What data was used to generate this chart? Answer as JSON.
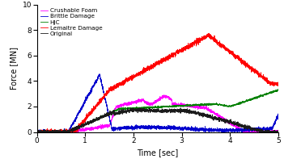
{
  "title": "",
  "xlabel": "Time [sec]",
  "ylabel": "Force [MN]",
  "xlim": [
    0,
    5
  ],
  "ylim": [
    0,
    10
  ],
  "xticks": [
    0,
    1,
    2,
    3,
    4,
    5
  ],
  "yticks": [
    0,
    2,
    4,
    6,
    8,
    10
  ],
  "legend": [
    "Crushable Foam",
    "Brittle Damage",
    "HJC",
    "Lemaitre Damage",
    "Original"
  ],
  "colors": [
    "#ff00ff",
    "#0000cd",
    "#008000",
    "#ff0000",
    "#1a1a1a"
  ],
  "figsize": [
    3.51,
    1.97
  ],
  "dpi": 100
}
